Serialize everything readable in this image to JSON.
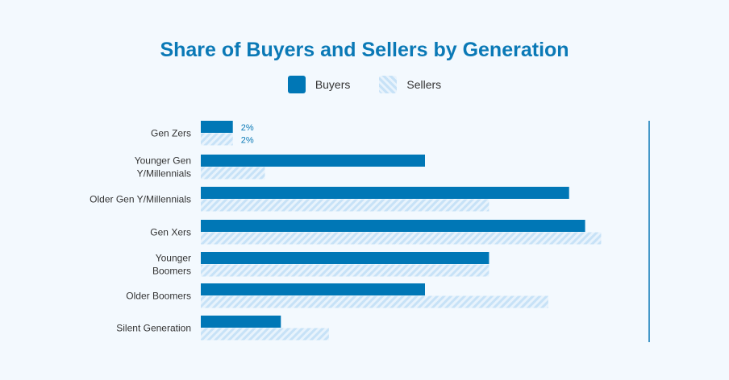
{
  "chart_data": {
    "type": "bar",
    "orientation": "horizontal",
    "title": "Share of Buyers and Sellers by Generation",
    "legend_position": "top-center",
    "grid": false,
    "xlim": [
      0,
      28
    ],
    "categories": [
      "Gen Zers",
      [
        "Younger Gen",
        "Y/Millennials"
      ],
      "Older Gen Y/Millennials",
      "Gen Xers",
      [
        "Younger",
        "Boomers"
      ],
      "Older Boomers",
      "Silent Generation"
    ],
    "series": [
      {
        "name": "Buyers",
        "values": [
          2,
          14,
          23,
          24,
          18,
          14,
          5
        ],
        "data_labels": [
          "2%",
          "",
          "",
          "",
          "",
          "",
          ""
        ]
      },
      {
        "name": "Sellers",
        "values": [
          2,
          4,
          18,
          25,
          18,
          21.7,
          8
        ],
        "data_labels": [
          "2%",
          "",
          "",
          "",
          "",
          "",
          ""
        ]
      }
    ],
    "colors": {
      "buyers": "#0077b6",
      "sellers_stripe": "#c7e2f7",
      "sellers_bg": "#e8f3fc",
      "label": "#0a79b6",
      "axis": "#0a79b6"
    }
  }
}
